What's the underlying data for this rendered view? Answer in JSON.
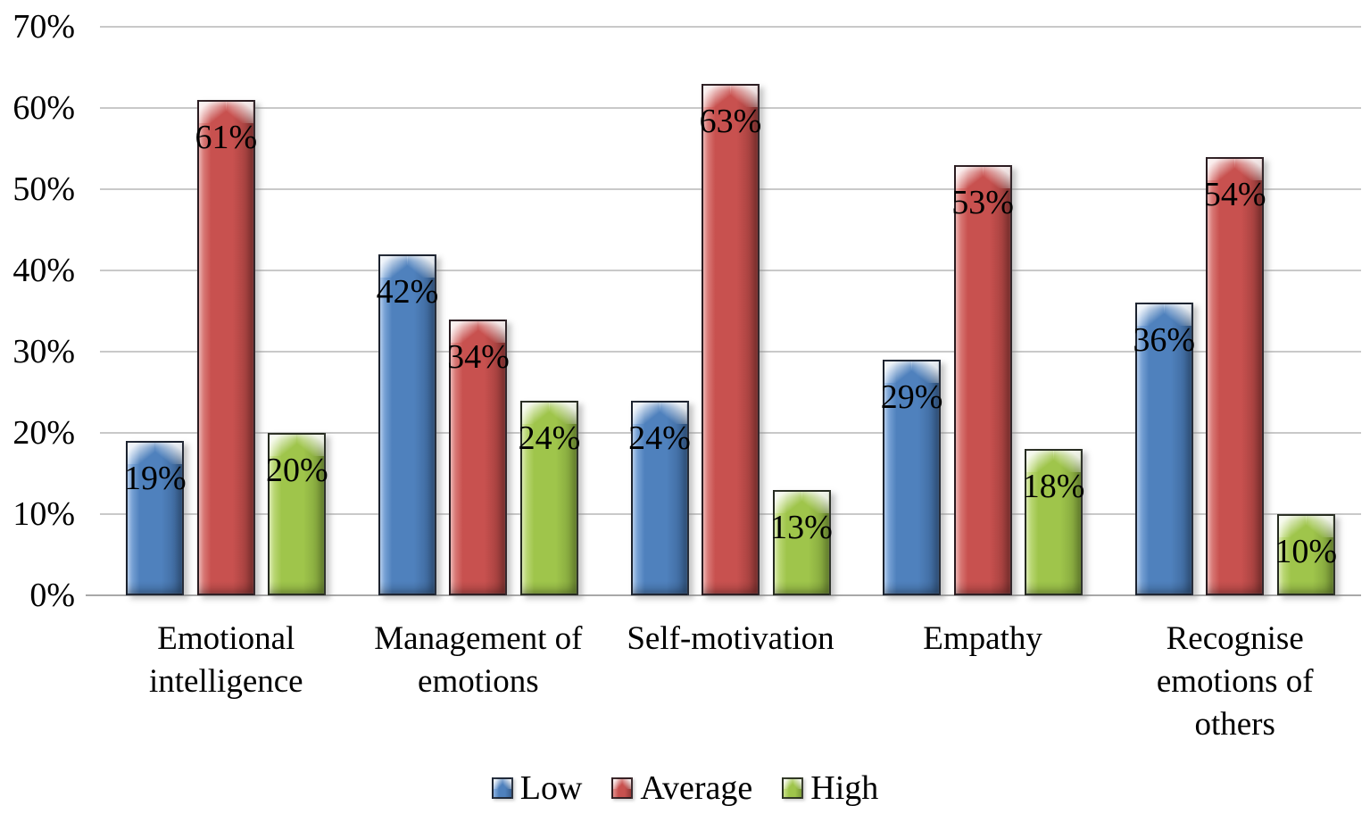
{
  "chart_data": {
    "type": "bar",
    "categories": [
      "Emotional intelligence",
      "Management of emotions",
      "Self-motivation",
      "Empathy",
      "Recognise emotions of others"
    ],
    "category_lines": [
      [
        "Emotional",
        "intelligence"
      ],
      [
        "Management of",
        "emotions"
      ],
      [
        "Self-motivation"
      ],
      [
        "Empathy"
      ],
      [
        "Recognise",
        "emotions of",
        "others"
      ]
    ],
    "series": [
      {
        "name": "Low",
        "values": [
          19,
          42,
          24,
          29,
          36
        ],
        "color": "#4f81bd",
        "color_light": "#8db3e2",
        "color_dark": "#3a6293"
      },
      {
        "name": "Average",
        "values": [
          61,
          34,
          63,
          53,
          54
        ],
        "color": "#c8514f",
        "color_light": "#e2908d",
        "color_dark": "#953a38"
      },
      {
        "name": "High",
        "values": [
          20,
          24,
          13,
          18,
          10
        ],
        "color": "#9fc54b",
        "color_light": "#c9e18a",
        "color_dark": "#7b9c39"
      }
    ],
    "value_suffix": "%",
    "data_labels": true,
    "title": "",
    "xlabel": "",
    "ylabel": "",
    "ylim": [
      0,
      70
    ],
    "ytick_step": 10,
    "ytick_labels": [
      "0%",
      "10%",
      "20%",
      "30%",
      "40%",
      "50%",
      "60%",
      "70%"
    ],
    "grid": true,
    "gridline_color": "#c9c9c9",
    "baseline_color": "#a8a8a8",
    "legend_position": "bottom"
  },
  "legend": {
    "items": [
      {
        "label": "Low",
        "color": "#4f81bd"
      },
      {
        "label": "Average",
        "color": "#c8514f"
      },
      {
        "label": "High",
        "color": "#9fc54b"
      }
    ]
  }
}
